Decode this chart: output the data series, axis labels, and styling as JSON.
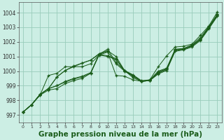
{
  "bg_color": "#cceee4",
  "grid_color": "#99ccbb",
  "line_color": "#1a5c1a",
  "marker_color": "#1a5c1a",
  "xlabel": "Graphe pression niveau de la mer (hPa)",
  "xlabel_fontsize": 7.5,
  "ylabel_ticks": [
    997,
    998,
    999,
    1000,
    1001,
    1002,
    1003,
    1004
  ],
  "xlim": [
    -0.5,
    23.5
  ],
  "ylim": [
    996.5,
    1004.7
  ],
  "xticks": [
    0,
    1,
    2,
    3,
    4,
    5,
    6,
    7,
    8,
    9,
    10,
    11,
    12,
    13,
    14,
    15,
    16,
    17,
    18,
    19,
    20,
    21,
    22,
    23
  ],
  "series": [
    [
      997.2,
      997.7,
      998.4,
      998.8,
      999.6,
      1000.05,
      1000.35,
      1000.55,
      1000.75,
      1001.2,
      1001.4,
      1001.0,
      1000.05,
      999.55,
      999.3,
      999.35,
      999.9,
      1000.15,
      1001.45,
      1001.5,
      1001.75,
      1002.2,
      1003.0,
      1003.85
    ],
    [
      997.2,
      997.7,
      998.4,
      998.8,
      999.0,
      999.3,
      999.5,
      999.65,
      999.9,
      1001.15,
      1001.05,
      1000.85,
      1000.05,
      999.75,
      999.35,
      999.4,
      1000.0,
      1000.2,
      1001.5,
      1001.55,
      1001.8,
      1002.3,
      1003.05,
      1003.9
    ],
    [
      997.2,
      997.7,
      998.4,
      998.8,
      999.0,
      999.25,
      999.45,
      999.6,
      999.85,
      1001.1,
      1001.0,
      1000.8,
      1000.0,
      999.7,
      999.3,
      999.35,
      999.95,
      1000.15,
      1001.45,
      1001.5,
      1001.75,
      1002.2,
      1003.0,
      1003.85
    ],
    [
      997.2,
      997.7,
      998.4,
      998.8,
      999.6,
      1000.05,
      1000.3,
      1000.55,
      1000.75,
      1001.15,
      1001.35,
      1000.5,
      1000.0,
      999.65,
      999.3,
      999.35,
      999.85,
      1000.1,
      1001.4,
      1001.5,
      1001.7,
      1002.15,
      1002.95,
      1003.8
    ],
    [
      997.2,
      997.7,
      998.35,
      999.7,
      999.85,
      1000.3,
      1000.3,
      1000.3,
      1000.5,
      1001.1,
      1001.3,
      999.7,
      999.65,
      999.4,
      999.3,
      999.35,
      999.8,
      1000.05,
      1001.35,
      1001.45,
      1001.65,
      1002.1,
      1002.9,
      1003.75
    ]
  ],
  "series_special": {
    "x": [
      0,
      1,
      2,
      3,
      4,
      5,
      6,
      7,
      8,
      9,
      10,
      11,
      12,
      13,
      14,
      15,
      16,
      17,
      18,
      19,
      20,
      21,
      22,
      23
    ],
    "y": [
      997.2,
      997.7,
      998.35,
      998.7,
      998.8,
      999.15,
      999.35,
      999.5,
      999.85,
      1001.15,
      1001.5,
      1000.6,
      1000.05,
      999.7,
      999.3,
      999.4,
      1000.3,
      1001.05,
      1001.65,
      1001.7,
      1001.85,
      1002.45,
      1003.1,
      1004.05
    ]
  }
}
